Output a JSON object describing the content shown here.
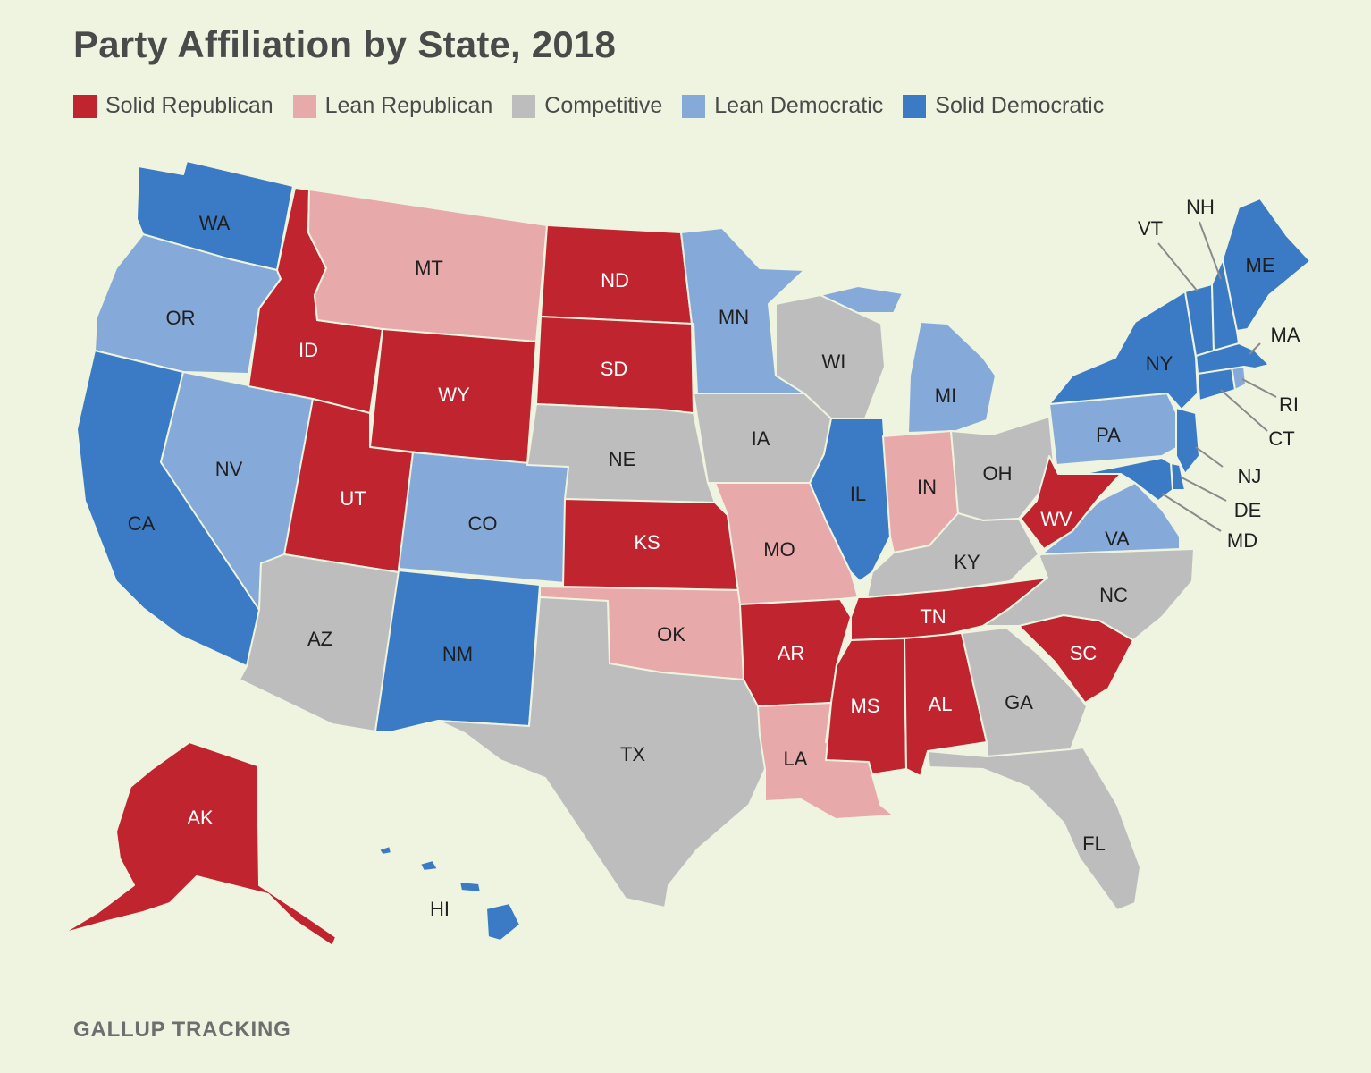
{
  "title": "Party Affiliation by State, 2018",
  "source": "GALLUP TRACKING",
  "legend": [
    {
      "key": "solid_r",
      "label": "Solid Republican",
      "color": "#c0242e"
    },
    {
      "key": "lean_r",
      "label": "Lean Republican",
      "color": "#e7a9aa"
    },
    {
      "key": "comp",
      "label": "Competitive",
      "color": "#bdbdbd"
    },
    {
      "key": "lean_d",
      "label": "Lean Democratic",
      "color": "#85aad9"
    },
    {
      "key": "solid_d",
      "label": "Solid Democratic",
      "color": "#3b7bc5"
    }
  ],
  "states": [
    {
      "abbr": "WA",
      "category": "solid_d"
    },
    {
      "abbr": "OR",
      "category": "lean_d"
    },
    {
      "abbr": "CA",
      "category": "solid_d"
    },
    {
      "abbr": "NV",
      "category": "lean_d"
    },
    {
      "abbr": "ID",
      "category": "solid_r"
    },
    {
      "abbr": "MT",
      "category": "lean_r"
    },
    {
      "abbr": "WY",
      "category": "solid_r"
    },
    {
      "abbr": "UT",
      "category": "solid_r"
    },
    {
      "abbr": "AZ",
      "category": "comp"
    },
    {
      "abbr": "CO",
      "category": "lean_d"
    },
    {
      "abbr": "NM",
      "category": "solid_d"
    },
    {
      "abbr": "ND",
      "category": "solid_r"
    },
    {
      "abbr": "SD",
      "category": "solid_r"
    },
    {
      "abbr": "NE",
      "category": "comp"
    },
    {
      "abbr": "KS",
      "category": "solid_r"
    },
    {
      "abbr": "OK",
      "category": "lean_r"
    },
    {
      "abbr": "TX",
      "category": "comp"
    },
    {
      "abbr": "MN",
      "category": "lean_d"
    },
    {
      "abbr": "IA",
      "category": "comp"
    },
    {
      "abbr": "MO",
      "category": "lean_r"
    },
    {
      "abbr": "AR",
      "category": "solid_r"
    },
    {
      "abbr": "LA",
      "category": "lean_r"
    },
    {
      "abbr": "WI",
      "category": "comp"
    },
    {
      "abbr": "IL",
      "category": "solid_d"
    },
    {
      "abbr": "MI",
      "category": "lean_d"
    },
    {
      "abbr": "IN",
      "category": "lean_r"
    },
    {
      "abbr": "OH",
      "category": "comp"
    },
    {
      "abbr": "KY",
      "category": "comp"
    },
    {
      "abbr": "TN",
      "category": "solid_r"
    },
    {
      "abbr": "MS",
      "category": "solid_r"
    },
    {
      "abbr": "AL",
      "category": "solid_r"
    },
    {
      "abbr": "GA",
      "category": "comp"
    },
    {
      "abbr": "FL",
      "category": "comp"
    },
    {
      "abbr": "SC",
      "category": "solid_r"
    },
    {
      "abbr": "NC",
      "category": "comp"
    },
    {
      "abbr": "VA",
      "category": "lean_d"
    },
    {
      "abbr": "WV",
      "category": "solid_r"
    },
    {
      "abbr": "PA",
      "category": "lean_d"
    },
    {
      "abbr": "NY",
      "category": "solid_d"
    },
    {
      "abbr": "NJ",
      "category": "solid_d"
    },
    {
      "abbr": "DE",
      "category": "solid_d"
    },
    {
      "abbr": "MD",
      "category": "solid_d"
    },
    {
      "abbr": "CT",
      "category": "solid_d"
    },
    {
      "abbr": "RI",
      "category": "lean_d"
    },
    {
      "abbr": "MA",
      "category": "solid_d"
    },
    {
      "abbr": "VT",
      "category": "solid_d"
    },
    {
      "abbr": "NH",
      "category": "solid_d"
    },
    {
      "abbr": "ME",
      "category": "solid_d"
    },
    {
      "abbr": "AK",
      "category": "solid_r"
    },
    {
      "abbr": "HI",
      "category": "solid_d"
    }
  ]
}
